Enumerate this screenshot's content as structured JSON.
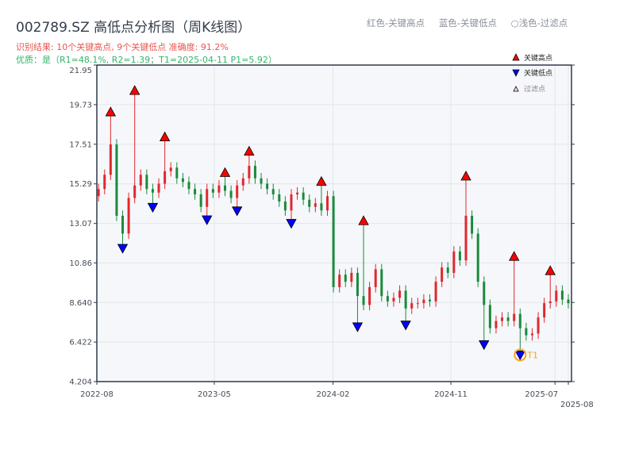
{
  "title": "002789.SZ 高低点分析图（周K线图）",
  "subtitle_result": "识别结果: 10个关键高点, 9个关键低点  准确度: 91.2%",
  "subtitle_quality": "优质：是（R1=48.1%, R2=1.39；T1=2025-04-11 P1=5.92）",
  "hint": {
    "high": "红色-关键高点",
    "low": "蓝色-关键低点",
    "filtered": "○浅色-过滤点"
  },
  "colors": {
    "up": "#e0282e",
    "down": "#1a8a3c",
    "high_marker": "#ff0000",
    "low_marker": "#0000ff",
    "t1_ring": "#f5a623",
    "plot_bg": "#f5f7fa",
    "axis": "#2e3a4a"
  },
  "chart_data": {
    "type": "candlestick",
    "ylim": [
      4.204,
      21.95
    ],
    "y_ticks": [
      "4.204",
      "6.422",
      "8.640",
      "10.86",
      "13.07",
      "15.29",
      "17.51",
      "19.73",
      "21.95"
    ],
    "x_range": [
      "2022-08-01",
      "2025-08-01"
    ],
    "x_ticks": [
      {
        "date": "2022-08-01",
        "label": "2022-08"
      },
      {
        "date": "2023-05-01",
        "label": "2023-05"
      },
      {
        "date": "2024-02-01",
        "label": "2024-02"
      },
      {
        "date": "2024-11-01",
        "label": "2024-11"
      },
      {
        "date": "2025-07-01",
        "label": "2025-07"
      },
      {
        "date": "2025-08-01",
        "label": "2025-08"
      }
    ],
    "grid": true,
    "legend": {
      "position": "top-right",
      "items": [
        "关键高点",
        "关键低点",
        "过滤点"
      ]
    },
    "dates": [
      "2022-08-05",
      "2022-08-19",
      "2022-09-02",
      "2022-09-16",
      "2022-09-30",
      "2022-10-14",
      "2022-10-28",
      "2022-11-11",
      "2022-11-25",
      "2022-12-09",
      "2022-12-23",
      "2023-01-06",
      "2023-01-20",
      "2023-02-03",
      "2023-02-17",
      "2023-03-03",
      "2023-03-17",
      "2023-03-31",
      "2023-04-14",
      "2023-04-28",
      "2023-05-12",
      "2023-05-26",
      "2023-06-09",
      "2023-06-23",
      "2023-07-07",
      "2023-07-21",
      "2023-08-04",
      "2023-08-18",
      "2023-09-01",
      "2023-09-15",
      "2023-09-29",
      "2023-10-13",
      "2023-10-27",
      "2023-11-10",
      "2023-11-24",
      "2023-12-08",
      "2023-12-22",
      "2024-01-05",
      "2024-01-19",
      "2024-02-02",
      "2024-02-16",
      "2024-03-01",
      "2024-03-15",
      "2024-03-29",
      "2024-04-12",
      "2024-04-26",
      "2024-05-10",
      "2024-05-24",
      "2024-06-07",
      "2024-06-21",
      "2024-07-05",
      "2024-07-19",
      "2024-08-02",
      "2024-08-16",
      "2024-08-30",
      "2024-09-13",
      "2024-09-27",
      "2024-10-11",
      "2024-10-25",
      "2024-11-08",
      "2024-11-22",
      "2024-12-06",
      "2024-12-20",
      "2025-01-03",
      "2025-01-17",
      "2025-01-31",
      "2025-02-14",
      "2025-02-28",
      "2025-03-14",
      "2025-03-28",
      "2025-04-11",
      "2025-04-25",
      "2025-05-09",
      "2025-05-23",
      "2025-06-06",
      "2025-06-20",
      "2025-07-04",
      "2025-07-18",
      "2025-08-01"
    ],
    "close": [
      15.0,
      15.8,
      17.5,
      13.5,
      12.5,
      14.5,
      15.2,
      15.8,
      15.0,
      14.8,
      15.3,
      16.0,
      16.2,
      15.6,
      15.4,
      15.0,
      14.7,
      14.0,
      15.0,
      14.8,
      15.2,
      14.9,
      14.5,
      15.2,
      15.6,
      16.3,
      15.6,
      15.3,
      15.0,
      14.7,
      14.3,
      13.8,
      14.7,
      14.8,
      14.4,
      14.0,
      14.2,
      13.8,
      14.6,
      9.5,
      10.2,
      9.8,
      10.3,
      9.0,
      8.5,
      9.5,
      10.5,
      9.0,
      8.7,
      8.9,
      9.3,
      8.3,
      8.6,
      8.6,
      8.8,
      8.7,
      9.8,
      10.6,
      10.3,
      11.5,
      11.0,
      13.5,
      12.5,
      9.8,
      8.5,
      7.2,
      7.6,
      7.8,
      7.6,
      8.0,
      7.2,
      6.8,
      6.9,
      7.8,
      8.6,
      8.7,
      9.3,
      8.8,
      8.6
    ],
    "key_highs": [
      {
        "date": "2022-09-02",
        "price": 19.1
      },
      {
        "date": "2022-10-28",
        "price": 20.3
      },
      {
        "date": "2023-01-06",
        "price": 17.7
      },
      {
        "date": "2023-05-26",
        "price": 15.7
      },
      {
        "date": "2023-07-21",
        "price": 16.9
      },
      {
        "date": "2024-01-05",
        "price": 15.2
      },
      {
        "date": "2024-04-12",
        "price": 13.0
      },
      {
        "date": "2024-12-06",
        "price": 15.5
      },
      {
        "date": "2025-03-28",
        "price": 11.0
      },
      {
        "date": "2025-06-20",
        "price": 10.2
      }
    ],
    "key_lows": [
      {
        "date": "2022-09-30",
        "price": 11.9
      },
      {
        "date": "2022-12-09",
        "price": 14.2
      },
      {
        "date": "2023-04-14",
        "price": 13.5
      },
      {
        "date": "2023-06-23",
        "price": 14.0
      },
      {
        "date": "2023-10-27",
        "price": 13.3
      },
      {
        "date": "2024-03-29",
        "price": 7.5
      },
      {
        "date": "2024-07-19",
        "price": 7.6
      },
      {
        "date": "2025-01-17",
        "price": 6.5
      },
      {
        "date": "2025-04-11",
        "price": 5.92
      }
    ],
    "t1": {
      "date": "2025-04-11",
      "price": 5.92,
      "label": "T1"
    }
  }
}
